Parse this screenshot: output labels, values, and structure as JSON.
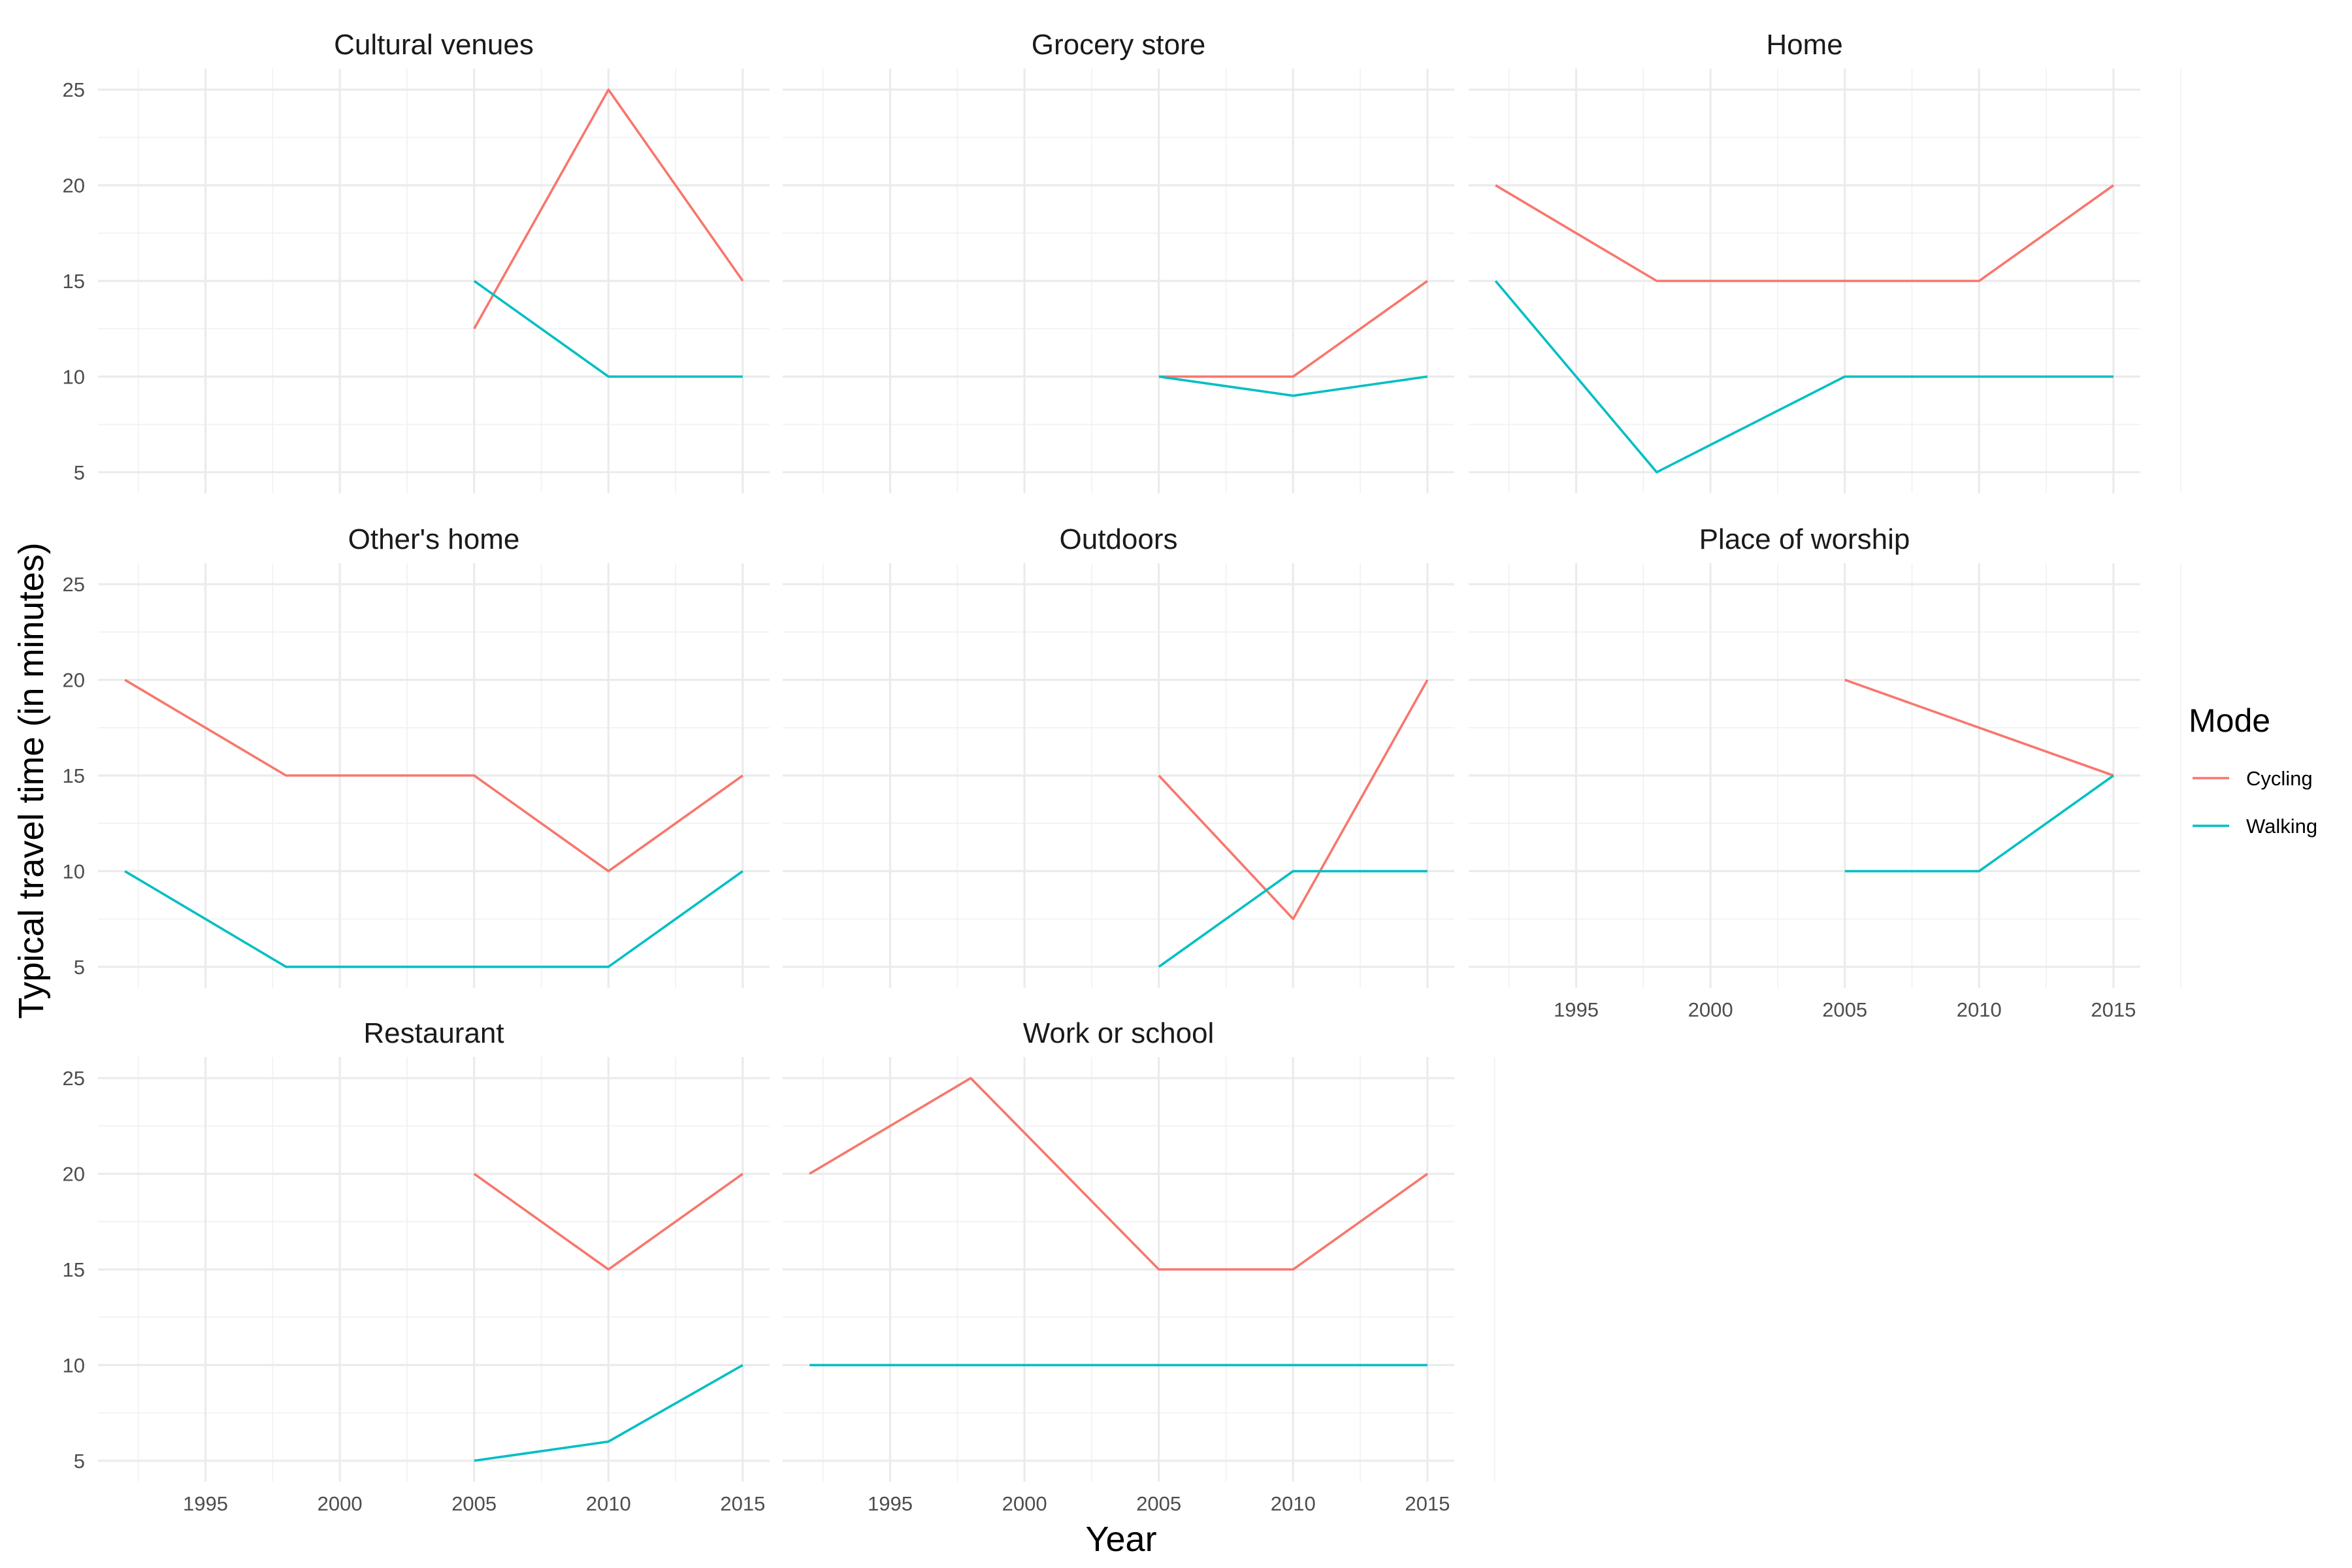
{
  "chart_data": {
    "type": "line",
    "layout": "facet_wrap",
    "xlabel": "Year",
    "ylabel": "Typical travel time (in minutes)",
    "xlim": [
      1991,
      2016
    ],
    "ylim": [
      3.9,
      26.1
    ],
    "x_ticks": [
      1995,
      2000,
      2005,
      2010,
      2015
    ],
    "y_ticks": [
      5,
      10,
      15,
      20,
      25
    ],
    "grid": true,
    "legend": {
      "title": "Mode",
      "position": "right",
      "entries": [
        {
          "label": "Cycling",
          "color": "#F8766D"
        },
        {
          "label": "Walking",
          "color": "#00BFC4"
        }
      ]
    },
    "panels": [
      {
        "title": "Cultural venues",
        "series": [
          {
            "name": "Cycling",
            "x": [
              2005,
              2010,
              2015
            ],
            "y": [
              12.5,
              25,
              15
            ]
          },
          {
            "name": "Walking",
            "x": [
              2005,
              2010,
              2015
            ],
            "y": [
              15,
              10,
              10
            ]
          }
        ]
      },
      {
        "title": "Grocery store",
        "series": [
          {
            "name": "Cycling",
            "x": [
              2005,
              2010,
              2015
            ],
            "y": [
              10,
              10,
              15
            ]
          },
          {
            "name": "Walking",
            "x": [
              2005,
              2010,
              2015
            ],
            "y": [
              10,
              9,
              10
            ]
          }
        ]
      },
      {
        "title": "Home",
        "series": [
          {
            "name": "Cycling",
            "x": [
              1992,
              1998,
              2005,
              2010,
              2015
            ],
            "y": [
              20,
              15,
              15,
              15,
              20
            ]
          },
          {
            "name": "Walking",
            "x": [
              1992,
              1998,
              2005,
              2010,
              2015
            ],
            "y": [
              15,
              5,
              10,
              10,
              10
            ]
          }
        ]
      },
      {
        "title": "Other's home",
        "series": [
          {
            "name": "Cycling",
            "x": [
              1992,
              1998,
              2005,
              2010,
              2015
            ],
            "y": [
              20,
              15,
              15,
              10,
              15
            ]
          },
          {
            "name": "Walking",
            "x": [
              1992,
              1998,
              2005,
              2010,
              2015
            ],
            "y": [
              10,
              5,
              5,
              5,
              10
            ]
          }
        ]
      },
      {
        "title": "Outdoors",
        "series": [
          {
            "name": "Cycling",
            "x": [
              2005,
              2010,
              2015
            ],
            "y": [
              15,
              7.5,
              20
            ]
          },
          {
            "name": "Walking",
            "x": [
              2005,
              2010,
              2015
            ],
            "y": [
              5,
              10,
              10
            ]
          }
        ]
      },
      {
        "title": "Place of worship",
        "series": [
          {
            "name": "Cycling",
            "x": [
              2005,
              2010,
              2015
            ],
            "y": [
              20,
              17.5,
              15
            ]
          },
          {
            "name": "Walking",
            "x": [
              2005,
              2010,
              2015
            ],
            "y": [
              10,
              10,
              15
            ]
          }
        ]
      },
      {
        "title": "Restaurant",
        "series": [
          {
            "name": "Cycling",
            "x": [
              2005,
              2010,
              2015
            ],
            "y": [
              20,
              15,
              20
            ]
          },
          {
            "name": "Walking",
            "x": [
              2005,
              2010,
              2015
            ],
            "y": [
              5,
              6,
              10
            ]
          }
        ]
      },
      {
        "title": "Work or school",
        "series": [
          {
            "name": "Cycling",
            "x": [
              1992,
              1998,
              2005,
              2010,
              2015
            ],
            "y": [
              20,
              25,
              15,
              15,
              20
            ]
          },
          {
            "name": "Walking",
            "x": [
              1992,
              1998,
              2005,
              2010,
              2015
            ],
            "y": [
              10,
              10,
              10,
              10,
              10
            ]
          }
        ]
      }
    ]
  }
}
